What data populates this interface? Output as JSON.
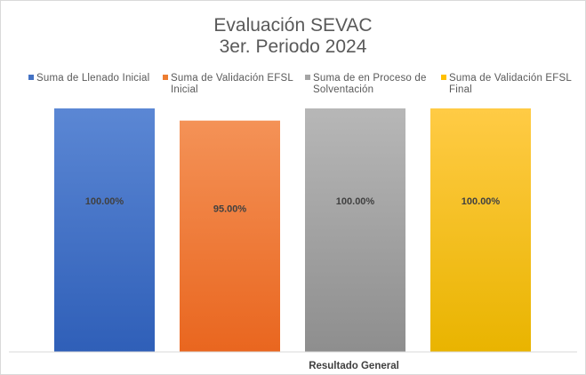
{
  "chart_data": {
    "type": "bar",
    "title": "Evaluación SEVAC",
    "subtitle": "3er. Periodo 2024",
    "categories": [
      "Resultado General"
    ],
    "xlabel": "Resultado General",
    "ylabel": "",
    "ylim": [
      0,
      1
    ],
    "grid": false,
    "legend_position": "top",
    "series": [
      {
        "name": "Suma de Llenado Inicial",
        "values": [
          1.0
        ],
        "label": "100.00%",
        "color_top": "#5b87d4",
        "color_bottom": "#2f5fb8",
        "legend_color": "#4472c4"
      },
      {
        "name": "Suma de Validación EFSL Inicial",
        "values": [
          0.95
        ],
        "label": "95.00%",
        "color_top": "#f49257",
        "color_bottom": "#e9661f",
        "legend_color": "#ed7d31"
      },
      {
        "name": "Suma de en Proceso de Solventación",
        "values": [
          1.0
        ],
        "label": "100.00%",
        "color_top": "#b7b7b7",
        "color_bottom": "#8e8e8e",
        "legend_color": "#a5a5a5"
      },
      {
        "name": "Suma de Validación EFSL Final",
        "values": [
          1.0
        ],
        "label": "100.00%",
        "color_top": "#ffcb45",
        "color_bottom": "#e9b400",
        "legend_color": "#ffc000"
      }
    ]
  }
}
